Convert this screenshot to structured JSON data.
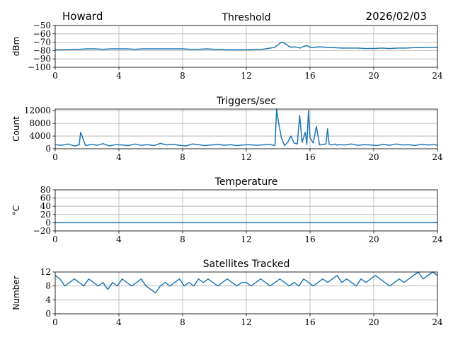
{
  "header": {
    "station": "Howard",
    "date": "2026/02/03"
  },
  "colors": {
    "series": "#1f77b4",
    "grid": "#b0b0b0"
  },
  "chart_data": [
    {
      "id": "threshold",
      "type": "line",
      "title": "Threshold",
      "xlabel": "",
      "ylabel": "dBm",
      "xlim": [
        0,
        24
      ],
      "ylim": [
        -100,
        -50
      ],
      "xticks": [
        0,
        4,
        8,
        12,
        16,
        20,
        24
      ],
      "yticks": [
        -100,
        -90,
        -80,
        -70,
        -60,
        -50
      ],
      "ytick_labels": [
        "−100",
        "−90",
        "−80",
        "−70",
        "−60",
        "−50"
      ],
      "x": [
        0,
        0.5,
        1,
        1.5,
        2,
        2.5,
        3,
        3.5,
        4,
        4.5,
        5,
        5.5,
        6,
        6.5,
        7,
        7.5,
        8,
        8.5,
        9,
        9.5,
        10,
        10.5,
        11,
        11.5,
        12,
        12.5,
        13,
        13.2,
        13.5,
        13.8,
        14.0,
        14.2,
        14.4,
        14.6,
        14.8,
        15.0,
        15.2,
        15.4,
        15.6,
        15.8,
        16.0,
        16.3,
        16.6,
        17,
        17.5,
        18,
        18.5,
        19,
        19.5,
        20,
        20.5,
        21,
        21.5,
        22,
        22.5,
        23,
        23.5,
        24
      ],
      "values": [
        -79,
        -79,
        -78.5,
        -78.5,
        -78,
        -78,
        -78.5,
        -78,
        -78,
        -78,
        -78.5,
        -78,
        -78,
        -78,
        -78,
        -78,
        -78,
        -78.5,
        -78.5,
        -78,
        -78.5,
        -78.5,
        -79,
        -79,
        -79,
        -78.5,
        -78.5,
        -78,
        -77,
        -76,
        -73,
        -70,
        -71,
        -74,
        -76,
        -75.5,
        -76,
        -77,
        -75,
        -74,
        -76,
        -76,
        -75.5,
        -76,
        -76.5,
        -77,
        -77,
        -77,
        -77.5,
        -77.5,
        -77,
        -77.5,
        -77,
        -77,
        -76.5,
        -76.5,
        -76,
        -76
      ]
    },
    {
      "id": "triggers",
      "type": "line",
      "title": "Triggers/sec",
      "xlabel": "",
      "ylabel": "Count",
      "xlim": [
        0,
        24
      ],
      "ylim": [
        0,
        12500
      ],
      "xticks": [
        0,
        4,
        8,
        12,
        16,
        20,
        24
      ],
      "yticks": [
        0,
        4000,
        8000,
        12000
      ],
      "ytick_labels": [
        "0",
        "4000",
        "8000",
        "12000"
      ],
      "x": [
        0,
        0.4,
        0.8,
        1.2,
        1.5,
        1.6,
        1.9,
        2.3,
        2.6,
        3.0,
        3.4,
        3.8,
        4.2,
        4.6,
        5.0,
        5.4,
        5.8,
        6.2,
        6.6,
        7.0,
        7.4,
        7.8,
        8.2,
        8.6,
        9.0,
        9.4,
        9.8,
        10.2,
        10.6,
        11.0,
        11.4,
        11.8,
        12.2,
        12.6,
        13.0,
        13.4,
        13.8,
        13.9,
        14.0,
        14.2,
        14.4,
        14.6,
        14.8,
        15.0,
        15.2,
        15.35,
        15.5,
        15.7,
        15.8,
        15.9,
        16.0,
        16.2,
        16.4,
        16.6,
        17.0,
        17.1,
        17.2,
        17.4,
        17.6,
        17.7,
        17.8,
        18.2,
        18.6,
        19.0,
        19.4,
        19.8,
        20.2,
        20.6,
        21.0,
        21.4,
        21.8,
        22.2,
        22.6,
        23.0,
        23.4,
        23.8,
        24
      ],
      "values": [
        1300,
        1100,
        1500,
        900,
        1200,
        5200,
        1000,
        1400,
        1100,
        1600,
        900,
        1300,
        1200,
        1000,
        1500,
        1100,
        1300,
        1000,
        1700,
        1200,
        1400,
        1100,
        900,
        1500,
        1300,
        1000,
        1200,
        1400,
        1100,
        1300,
        1000,
        1200,
        1300,
        1100,
        1200,
        1400,
        1000,
        12500,
        9000,
        3500,
        1000,
        2000,
        4000,
        1800,
        1500,
        10500,
        2000,
        5200,
        1300,
        12000,
        3500,
        1800,
        7000,
        1200,
        1500,
        6300,
        1400,
        1200,
        1500,
        1100,
        1300,
        1200,
        1500,
        1100,
        1300,
        1200,
        1000,
        1400,
        1100,
        1500,
        1200,
        1300,
        1000,
        1400,
        1200,
        1300,
        1100
      ]
    },
    {
      "id": "temperature",
      "type": "line",
      "title": "Temperature",
      "xlabel": "",
      "ylabel": "°C",
      "xlim": [
        0,
        24
      ],
      "ylim": [
        -20,
        80
      ],
      "xticks": [
        0,
        4,
        8,
        12,
        16,
        20,
        24
      ],
      "yticks": [
        -20,
        0,
        20,
        40,
        60,
        80
      ],
      "ytick_labels": [
        "−20",
        "0",
        "20",
        "40",
        "60",
        "80"
      ],
      "x": [
        0,
        24
      ],
      "values": [
        0,
        0
      ]
    },
    {
      "id": "satellites",
      "type": "line",
      "title": "Satellites Tracked",
      "xlabel": "",
      "ylabel": "Number",
      "xlim": [
        0,
        24
      ],
      "ylim": [
        0,
        12
      ],
      "xticks": [
        0,
        4,
        8,
        12,
        16,
        20,
        24
      ],
      "yticks": [
        0,
        4,
        8,
        12
      ],
      "ytick_labels": [
        "0",
        "4",
        "8",
        "12"
      ],
      "x": [
        0,
        0.3,
        0.6,
        0.9,
        1.2,
        1.5,
        1.8,
        2.1,
        2.4,
        2.7,
        3.0,
        3.3,
        3.6,
        3.9,
        4.2,
        4.5,
        4.8,
        5.1,
        5.4,
        5.7,
        6.0,
        6.3,
        6.6,
        6.9,
        7.2,
        7.5,
        7.8,
        8.1,
        8.4,
        8.7,
        9.0,
        9.3,
        9.6,
        9.9,
        10.2,
        10.5,
        10.8,
        11.1,
        11.4,
        11.7,
        12.0,
        12.3,
        12.6,
        12.9,
        13.2,
        13.5,
        13.8,
        14.1,
        14.4,
        14.7,
        15.0,
        15.3,
        15.6,
        15.9,
        16.2,
        16.5,
        16.8,
        17.1,
        17.4,
        17.7,
        18.0,
        18.3,
        18.6,
        18.9,
        19.2,
        19.5,
        19.8,
        20.1,
        20.4,
        20.7,
        21.0,
        21.3,
        21.6,
        21.9,
        22.2,
        22.5,
        22.8,
        23.1,
        23.4,
        23.7,
        24
      ],
      "values": [
        11,
        10,
        8,
        9,
        10,
        9,
        8,
        10,
        9,
        8,
        9,
        7,
        9,
        8,
        10,
        9,
        8,
        9,
        10,
        8,
        7,
        6,
        8,
        9,
        8,
        9,
        10,
        8,
        9,
        8,
        10,
        9,
        10,
        9,
        8,
        9,
        10,
        9,
        8,
        9,
        9,
        8,
        9,
        10,
        9,
        8,
        9,
        10,
        9,
        8,
        9,
        8,
        10,
        9,
        8,
        9,
        10,
        9,
        10,
        11,
        9,
        10,
        9,
        8,
        10,
        9,
        10,
        11,
        10,
        9,
        8,
        9,
        10,
        9,
        10,
        11,
        12,
        10,
        11,
        12,
        11
      ]
    }
  ]
}
